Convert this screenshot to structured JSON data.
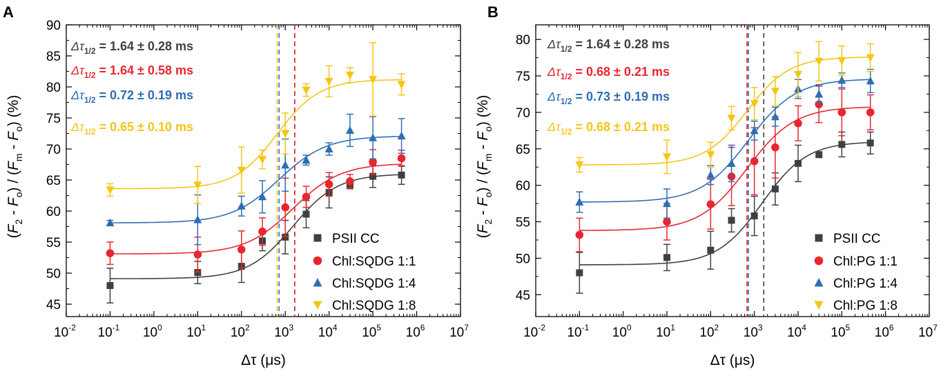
{
  "chart_data": [
    {
      "panel": "A",
      "type": "scatter",
      "xscale": "log",
      "xlim_exp": [
        -2,
        7
      ],
      "ylim": [
        43,
        90
      ],
      "xlabel": "Δτ (μs)",
      "ylabel": "(F2 - Fo) / (Fm - Fo) (%)",
      "ylabel_parts": {
        "open": "(",
        "F": "F",
        "sub2": "2",
        "minus": " - ",
        "sub_o": "o",
        "mid": ") / (",
        "sub_m": "m",
        "close": ") (%)"
      },
      "xticks": {
        "base": "10",
        "exponents": [
          "-2",
          "-1",
          "0",
          "1",
          "2",
          "3",
          "4",
          "5",
          "6",
          "7"
        ]
      },
      "yticks": [
        45,
        50,
        55,
        60,
        65,
        70,
        75,
        80,
        85,
        90
      ],
      "x": [
        0.1,
        10,
        100,
        300,
        1000,
        3000,
        10000,
        30000,
        100000,
        450000
      ],
      "series": [
        {
          "name": "PSII CC",
          "marker": "square",
          "color": "#404040",
          "values": [
            48.0,
            50.1,
            51.1,
            55.2,
            55.8,
            59.5,
            63.0,
            64.2,
            65.6,
            65.8
          ],
          "errors": [
            2.8,
            1.8,
            2.6,
            1.6,
            2.7,
            2.2,
            2.5,
            0.6,
            1.8,
            1.5
          ],
          "fit": {
            "base": 49.1,
            "amp": 16.9,
            "x0": 1500,
            "n": 0.85
          },
          "vline": 1640
        },
        {
          "name": "Chl:SQDG 1:1",
          "marker": "circle",
          "color": "#E8262F",
          "values": [
            53.2,
            53.0,
            53.8,
            56.7,
            60.6,
            62.3,
            64.3,
            64.8,
            67.9,
            68.5
          ],
          "errors": [
            1.8,
            2.8,
            3.0,
            2.2,
            4.7,
            1.7,
            1.9,
            1.1,
            2.0,
            1.3
          ],
          "fit": {
            "base": 53.1,
            "amp": 14.6,
            "x0": 1500,
            "n": 0.8
          },
          "vline": 1640
        },
        {
          "name": "Chl:SQDG 1:4",
          "marker": "triangle-up",
          "color": "#2E6DB4",
          "values": [
            58.1,
            58.6,
            60.8,
            62.3,
            67.4,
            68.2,
            70.0,
            73.0,
            71.8,
            72.1
          ],
          "errors": [
            0.4,
            4.0,
            1.6,
            2.6,
            4.2,
            0.8,
            1.0,
            2.6,
            3.4,
            2.8
          ],
          "fit": {
            "base": 58.1,
            "amp": 14.0,
            "x0": 720,
            "n": 0.8
          },
          "vline": 720
        },
        {
          "name": "Chl:SQDG 1:8",
          "marker": "triangle-down",
          "color": "#F5C518",
          "values": [
            63.4,
            64.2,
            66.6,
            68.3,
            72.5,
            79.5,
            80.9,
            81.9,
            81.2,
            80.4
          ],
          "errors": [
            1.0,
            3.0,
            3.7,
            1.5,
            3.3,
            1.0,
            2.5,
            1.2,
            5.9,
            1.7
          ],
          "fit": {
            "base": 63.6,
            "amp": 17.6,
            "x0": 650,
            "n": 0.9
          },
          "vline": 650
        }
      ],
      "annotations": [
        {
          "color": "#404040",
          "pre": "Δτ",
          "sub": "1/2",
          "post": " = 1.64 ± 0.28 ms"
        },
        {
          "color": "#E8262F",
          "pre": "Δτ",
          "sub": "1/2",
          "post": " = 1.64 ± 0.58 ms"
        },
        {
          "color": "#2E6DB4",
          "pre": "Δτ",
          "sub": "1/2",
          "post": " = 0.72 ± 0.19 ms"
        },
        {
          "color": "#F5C518",
          "pre": "Δτ",
          "sub": "1/2",
          "post": " = 0.65 ± 0.10 ms"
        }
      ],
      "legend_position": "bottom-right"
    },
    {
      "panel": "B",
      "type": "scatter",
      "xscale": "log",
      "xlim_exp": [
        -2,
        7
      ],
      "ylim": [
        42,
        82
      ],
      "xlabel": "Δτ (μs)",
      "ylabel": "(F2 - Fo) / (Fm - Fo) (%)",
      "ylabel_parts": {
        "open": "(",
        "F": "F",
        "sub2": "2",
        "minus": " - ",
        "sub_o": "o",
        "mid": ") / (",
        "sub_m": "m",
        "close": ") (%)"
      },
      "xticks": {
        "base": "10",
        "exponents": [
          "-2",
          "-1",
          "0",
          "1",
          "2",
          "3",
          "4",
          "5",
          "6",
          "7"
        ]
      },
      "yticks": [
        45,
        50,
        55,
        60,
        65,
        70,
        75,
        80
      ],
      "x": [
        0.1,
        10,
        100,
        300,
        1000,
        3000,
        10000,
        30000,
        100000,
        450000
      ],
      "series": [
        {
          "name": "PSII CC",
          "marker": "square",
          "color": "#404040",
          "values": [
            48.0,
            50.1,
            51.1,
            55.2,
            55.8,
            59.5,
            63.0,
            64.2,
            65.6,
            65.8
          ],
          "errors": [
            2.8,
            1.8,
            2.6,
            1.6,
            2.7,
            2.2,
            2.5,
            0.3,
            1.7,
            1.5
          ],
          "fit": {
            "base": 49.1,
            "amp": 16.9,
            "x0": 1500,
            "n": 0.85
          },
          "vline": 1640
        },
        {
          "name": "Chl:PG 1:1",
          "marker": "circle",
          "color": "#E8262F",
          "values": [
            53.2,
            55.0,
            57.4,
            61.2,
            63.3,
            65.2,
            68.5,
            71.1,
            70.0,
            70.0
          ],
          "errors": [
            2.3,
            2.5,
            3.4,
            4.0,
            4.6,
            4.2,
            2.4,
            2.5,
            3.2,
            2.4
          ],
          "fit": {
            "base": 53.8,
            "amp": 17.0,
            "x0": 680,
            "n": 0.8
          },
          "vline": 680
        },
        {
          "name": "Chl:PG 1:4",
          "marker": "triangle-up",
          "color": "#2E6DB4",
          "values": [
            57.7,
            57.5,
            61.4,
            63.0,
            67.5,
            69.4,
            73.2,
            72.5,
            74.4,
            74.3
          ],
          "errors": [
            1.4,
            2.0,
            1.3,
            2.5,
            1.3,
            1.3,
            1.3,
            1.3,
            1.0,
            1.6
          ],
          "fit": {
            "base": 57.7,
            "amp": 16.9,
            "x0": 730,
            "n": 0.8
          },
          "vline": 730
        },
        {
          "name": "Chl:PG 1:8",
          "marker": "triangle-down",
          "color": "#F5C518",
          "values": [
            62.8,
            63.9,
            64.2,
            69.2,
            71.2,
            72.9,
            75.2,
            77.0,
            77.1,
            77.5
          ],
          "errors": [
            1.0,
            2.3,
            1.7,
            1.6,
            2.2,
            2.0,
            3.0,
            2.7,
            2.0,
            1.9
          ],
          "fit": {
            "base": 62.8,
            "amp": 14.8,
            "x0": 680,
            "n": 0.9
          },
          "vline": 680
        }
      ],
      "annotations": [
        {
          "color": "#404040",
          "pre": "Δτ",
          "sub": "1/2",
          "post": " = 1.64 ± 0.28 ms"
        },
        {
          "color": "#E8262F",
          "pre": "Δτ",
          "sub": "1/2",
          "post": " = 0.68 ± 0.21 ms"
        },
        {
          "color": "#2E6DB4",
          "pre": "Δτ",
          "sub": "1/2",
          "post": " = 0.73 ± 0.19 ms"
        },
        {
          "color": "#F5C518",
          "pre": "Δτ",
          "sub": "1/2",
          "post": " = 0.68 ± 0.21 ms"
        }
      ],
      "legend_position": "bottom-right"
    }
  ]
}
